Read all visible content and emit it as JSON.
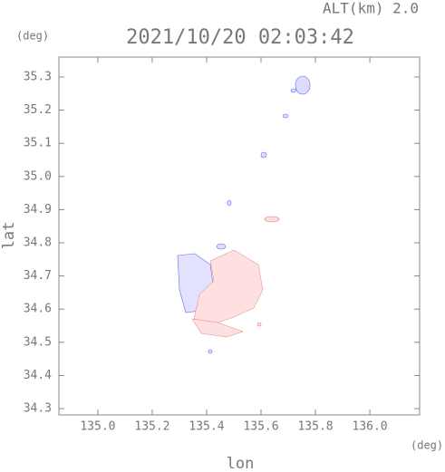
{
  "chart_data": {
    "type": "map",
    "title": "2021/10/20 02:03:42",
    "subtitle": "ALT(km) 2.0",
    "x_label": "lon",
    "y_label": "lat",
    "x_unit": "(deg)",
    "y_unit": "(deg)",
    "xlim": [
      134.857,
      136.183
    ],
    "ylim": [
      34.281,
      35.36
    ],
    "xticks": [
      {
        "value": 135.0,
        "label": "135.0"
      },
      135.2,
      135.4,
      135.6,
      135.8,
      {
        "value": 136.0,
        "label": "136.0"
      }
    ],
    "yticks": [
      34.3,
      34.4,
      34.5,
      34.6,
      34.7,
      34.8,
      34.9,
      {
        "value": 35.0,
        "label": "35.0"
      },
      35.1,
      35.2,
      35.3
    ]
  }
}
